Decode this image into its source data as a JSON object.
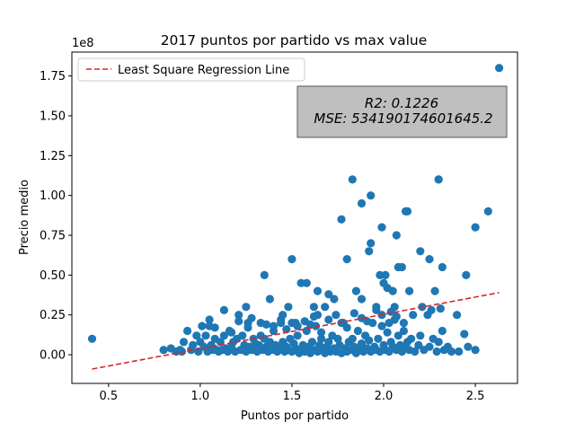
{
  "chart_data": {
    "type": "scatter",
    "title": "2017 puntos por partido vs max value",
    "xlabel": "Puntos por partido",
    "ylabel": "Precio medio",
    "y_offset_label": "1e8",
    "xlim": [
      0.3,
      2.73
    ],
    "ylim": [
      -0.18,
      1.9
    ],
    "x_ticks": [
      0.5,
      1.0,
      1.5,
      2.0,
      2.5
    ],
    "x_tick_labels": [
      "0.5",
      "1.0",
      "1.5",
      "2.0",
      "2.5"
    ],
    "y_ticks": [
      0.0,
      0.25,
      0.5,
      0.75,
      1.0,
      1.25,
      1.5,
      1.75
    ],
    "y_tick_labels": [
      "0.00",
      "0.25",
      "0.50",
      "0.75",
      "1.00",
      "1.25",
      "1.50",
      "1.75"
    ],
    "grid": false,
    "legend": {
      "position": "top-left",
      "entries": [
        "Least Square Regression Line"
      ]
    },
    "stats_box": {
      "r2": "R2: 0.1226",
      "mse": "MSE: 534190174601645.2",
      "position": "top-right"
    },
    "colors": {
      "points": "#1f77b4",
      "regression": "#d62728",
      "stats_box_fill": "#bfbfbf"
    },
    "regression_line": {
      "name": "Least Square Regression Line",
      "x": [
        0.41,
        2.63
      ],
      "y": [
        -0.09,
        0.39
      ]
    },
    "series": [
      {
        "x": [
          0.41,
          0.8,
          0.84,
          0.87,
          0.89,
          0.9,
          0.91,
          0.93,
          0.95,
          0.96,
          0.98,
          0.99,
          1.0,
          1.01,
          1.02,
          1.03,
          1.04,
          1.05,
          1.06,
          1.07,
          1.08,
          1.09,
          1.1,
          1.11,
          1.12,
          1.13,
          1.14,
          1.15,
          1.16,
          1.17,
          1.18,
          1.19,
          1.2,
          1.21,
          1.22,
          1.23,
          1.24,
          1.25,
          1.26,
          1.27,
          1.28,
          1.29,
          1.3,
          1.31,
          1.32,
          1.33,
          1.34,
          1.35,
          1.36,
          1.37,
          1.38,
          1.39,
          1.4,
          1.41,
          1.42,
          1.43,
          1.44,
          1.45,
          1.46,
          1.47,
          1.48,
          1.49,
          1.5,
          1.51,
          1.52,
          1.53,
          1.54,
          1.55,
          1.56,
          1.57,
          1.58,
          1.59,
          1.6,
          1.61,
          1.62,
          1.63,
          1.64,
          1.65,
          1.66,
          1.67,
          1.68,
          1.69,
          1.7,
          1.71,
          1.72,
          1.73,
          1.74,
          1.75,
          1.76,
          1.77,
          1.78,
          1.79,
          1.8,
          1.81,
          1.82,
          1.83,
          1.84,
          1.85,
          1.86,
          1.87,
          1.88,
          1.89,
          1.9,
          1.91,
          1.92,
          1.93,
          1.94,
          1.95,
          1.96,
          1.97,
          1.98,
          1.99,
          2.0,
          2.01,
          2.02,
          2.03,
          2.04,
          2.05,
          2.06,
          2.07,
          2.08,
          2.09,
          2.1,
          2.11,
          2.12,
          2.13,
          2.14,
          2.15,
          2.17,
          2.19,
          2.2,
          2.22,
          2.24,
          2.25,
          2.27,
          2.29,
          2.3,
          2.32,
          2.33,
          2.35,
          2.37,
          2.41,
          2.44,
          2.46,
          2.5,
          1.05,
          1.08,
          1.13,
          1.17,
          1.21,
          1.26,
          1.28,
          1.33,
          1.36,
          1.4,
          1.44,
          1.47,
          1.5,
          1.53,
          1.57,
          1.6,
          1.62,
          1.66,
          1.7,
          1.74,
          1.77,
          1.8,
          1.84,
          1.88,
          1.91,
          1.96,
          1.99,
          2.04,
          2.07,
          2.11,
          2.16,
          2.21,
          2.31,
          1.35,
          1.5,
          1.38,
          1.55,
          1.64,
          1.7,
          1.8,
          1.85,
          1.92,
          1.93,
          1.96,
          1.98,
          2.0,
          2.01,
          2.02,
          2.05,
          2.07,
          2.1,
          2.13,
          2.2,
          2.25,
          2.28,
          2.3,
          2.32,
          2.45,
          2.5,
          2.57,
          2.63,
          1.83,
          1.88,
          1.93,
          2.12,
          2.3,
          1.77,
          1.62,
          1.88,
          1.99,
          2.08,
          2.14,
          1.25,
          1.45,
          1.48,
          1.52,
          1.58,
          1.64,
          1.68,
          1.73,
          2.03,
          2.06,
          2.26,
          2.4
        ],
        "y": [
          0.1,
          0.03,
          0.04,
          0.02,
          0.03,
          0.02,
          0.08,
          0.15,
          0.03,
          0.06,
          0.12,
          0.02,
          0.08,
          0.18,
          0.05,
          0.12,
          0.02,
          0.18,
          0.06,
          0.03,
          0.1,
          0.03,
          0.02,
          0.08,
          0.03,
          0.12,
          0.04,
          0.02,
          0.15,
          0.05,
          0.08,
          0.02,
          0.1,
          0.25,
          0.03,
          0.12,
          0.06,
          0.02,
          0.2,
          0.05,
          0.03,
          0.1,
          0.07,
          0.02,
          0.06,
          0.2,
          0.03,
          0.1,
          0.05,
          0.02,
          0.08,
          0.03,
          0.15,
          0.06,
          0.02,
          0.04,
          0.2,
          0.08,
          0.02,
          0.05,
          0.03,
          0.1,
          0.02,
          0.07,
          0.04,
          0.12,
          0.01,
          0.03,
          0.06,
          0.02,
          0.15,
          0.05,
          0.01,
          0.08,
          0.03,
          0.18,
          0.02,
          0.06,
          0.1,
          0.03,
          0.01,
          0.05,
          0.08,
          0.02,
          0.12,
          0.04,
          0.02,
          0.1,
          0.06,
          0.01,
          0.2,
          0.04,
          0.02,
          0.08,
          0.03,
          0.1,
          0.05,
          0.01,
          0.15,
          0.03,
          0.07,
          0.02,
          0.12,
          0.04,
          0.09,
          0.02,
          0.2,
          0.05,
          0.03,
          0.1,
          0.02,
          0.18,
          0.06,
          0.03,
          0.14,
          0.02,
          0.08,
          0.05,
          0.22,
          0.03,
          0.12,
          0.06,
          0.02,
          0.15,
          0.04,
          0.08,
          0.03,
          0.1,
          0.02,
          0.06,
          0.12,
          0.03,
          0.25,
          0.05,
          0.1,
          0.02,
          0.08,
          0.15,
          0.03,
          0.05,
          0.02,
          0.02,
          0.13,
          0.05,
          0.03,
          0.22,
          0.17,
          0.28,
          0.14,
          0.21,
          0.17,
          0.23,
          0.12,
          0.19,
          0.18,
          0.22,
          0.16,
          0.2,
          0.18,
          0.21,
          0.19,
          0.24,
          0.14,
          0.22,
          0.25,
          0.2,
          0.17,
          0.26,
          0.23,
          0.21,
          0.28,
          0.25,
          0.27,
          0.24,
          0.2,
          0.25,
          0.3,
          0.29,
          0.5,
          0.6,
          0.35,
          0.45,
          0.4,
          0.38,
          0.6,
          0.4,
          0.65,
          0.7,
          0.3,
          0.5,
          0.45,
          0.5,
          0.42,
          0.4,
          0.75,
          0.55,
          0.9,
          0.65,
          0.6,
          0.4,
          1.1,
          0.55,
          0.5,
          0.8,
          0.9,
          1.8,
          1.1,
          0.95,
          1.0,
          0.9,
          1.1,
          0.85,
          0.3,
          0.35,
          0.8,
          0.55,
          0.4,
          0.3,
          0.25,
          0.3,
          0.2,
          0.45,
          0.25,
          0.3,
          0.35,
          0.2,
          0.3,
          0.28,
          0.25
        ]
      }
    ]
  }
}
